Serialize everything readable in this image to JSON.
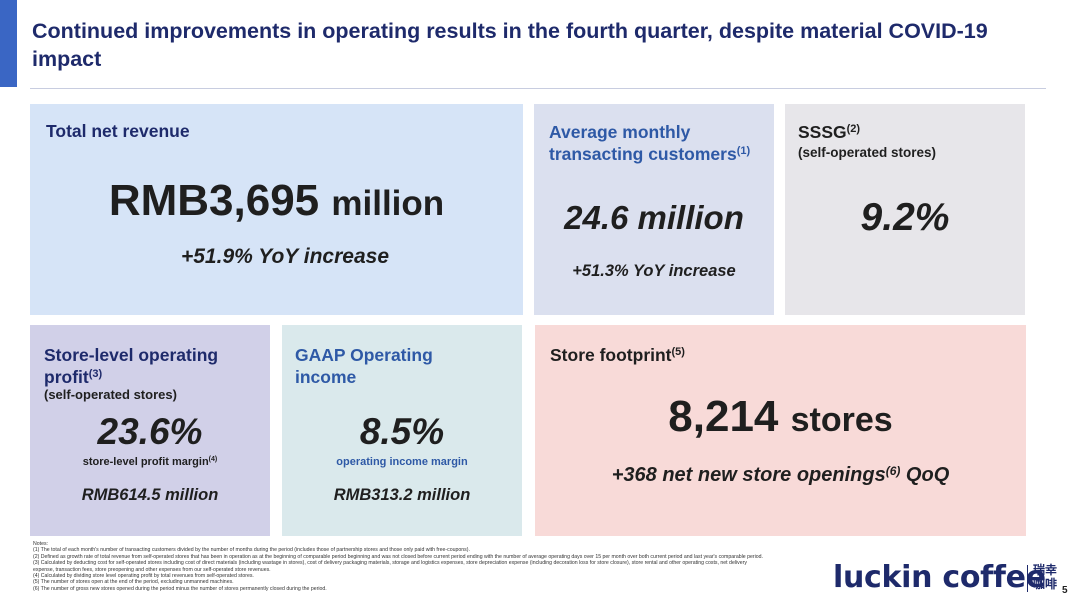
{
  "title": "Continued improvements in operating results in the fourth quarter, despite material COVID-19 impact",
  "cards": {
    "revenue": {
      "heading": "Total net revenue",
      "value_prefix": "RMB3,695",
      "value_unit": "million",
      "change": "+51.9% YoY increase"
    },
    "monthly_customers": {
      "heading_line1": "Average monthly",
      "heading_line2": "transacting customers",
      "note_ref": "(1)",
      "value": "24.6 million",
      "change": "+51.3% YoY increase"
    },
    "sssg": {
      "heading": "SSSG",
      "note_ref": "(2)",
      "subheading": "(self-operated stores)",
      "value": "9.2%"
    },
    "store_level_profit": {
      "heading_line1": "Store-level operating",
      "heading_line2": "profit",
      "note_ref": "(3)",
      "subheading": "(self-operated stores)",
      "value": "23.6%",
      "caption": "store-level profit margin",
      "caption_ref": "(4)",
      "amount": "RMB614.5 million"
    },
    "gaap": {
      "heading_line1": "GAAP Operating",
      "heading_line2": "income",
      "value": "8.5%",
      "caption": "operating income margin",
      "amount": "RMB313.2 million"
    },
    "store_footprint": {
      "heading": "Store footprint",
      "note_ref": "(5)",
      "value_number": "8,214",
      "value_unit": "stores",
      "change_prefix": "+368 net new store openings",
      "change_ref": "(6)",
      "change_suffix": " QoQ"
    }
  },
  "notes": [
    "Notes:",
    "(1) The total of each month's number of transacting customers divided by the number of months during the period (includes those of partnership stores and those only paid with free-coupons).",
    "(2) Defined as growth rate of total revenue from self-operated stores that has been in operation as at the beginning of comparable period beginning and was not closed before current period ending with the number of average operating days over 15 per month over both current period and last year's comparable period.",
    "(3) Calculated by deducting cost for self-operated stores including cost of direct materials (including wastage in stores), cost of delivery packaging materials, storage and logistics expenses, store depreciation expense (including decoration loss for store closure), store rental and other operating costs, net delivery",
    "expense, transaction fees, store preopening and other expenses from our self-operated store revenues.",
    "(4) Calculated by dividing store level operating profit by total revenues from self-operated stores.",
    "(5) The number of stores open at the end of the period, excluding unmanned machines.",
    "(6) The number of gross new stores opened during the period minus the number of stores permanently closed during the period."
  ],
  "logo": {
    "wordmark": "luckin coffee",
    "cn_line1": "瑞幸",
    "cn_line2": "咖啡"
  },
  "page_number": "5",
  "colors": {
    "title": "#1e2a6b",
    "accent_bar": "#3a66c4",
    "card_revenue": "#d6e4f7",
    "card_customers": "#dbe0ef",
    "card_sssg": "#e7e6ea",
    "card_store_profit": "#d1d0e8",
    "card_gaap": "#dae9ec",
    "card_store_footprint": "#f8dad8"
  }
}
